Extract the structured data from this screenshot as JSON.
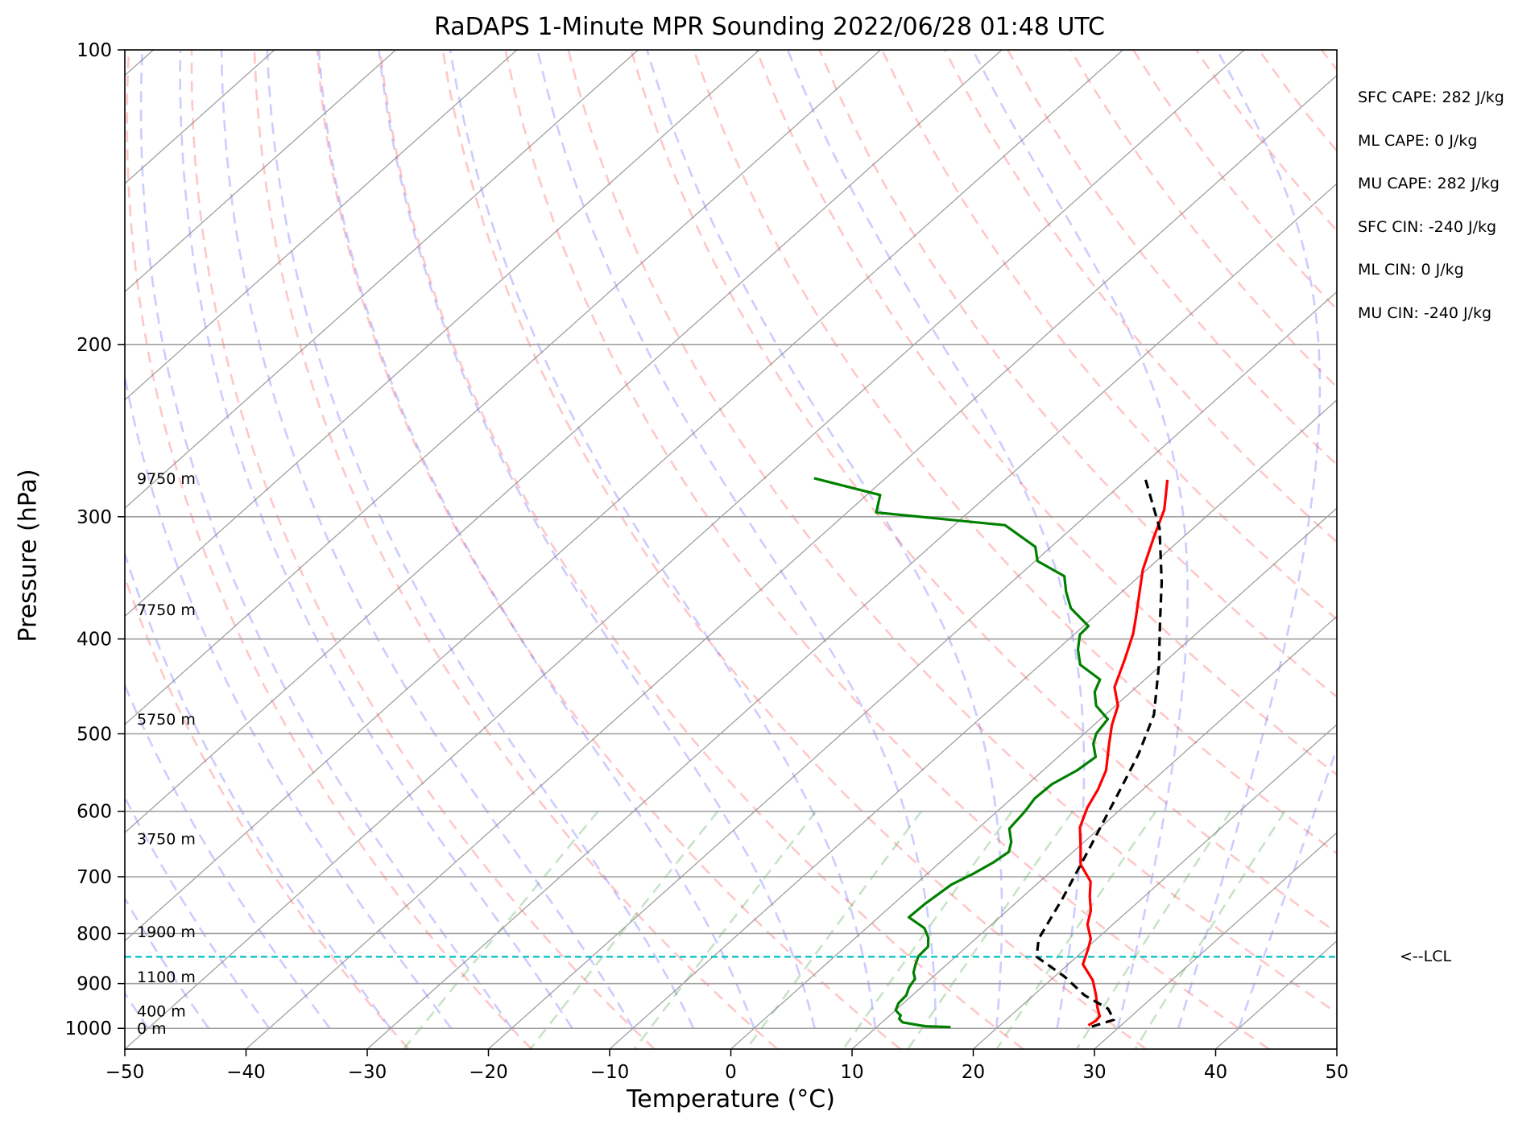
{
  "chart_data": {
    "type": "line",
    "title": "RaDAPS 1-Minute MPR Sounding 2022/06/28 01:48 UTC",
    "xlabel": "Temperature (°C)",
    "ylabel": "Pressure (hPa)",
    "xlim": [
      -50,
      50
    ],
    "ylim": [
      1050,
      100
    ],
    "y_scale": "log",
    "x_ticks": [
      "−50",
      "−40",
      "−30",
      "−20",
      "−10",
      "0",
      "10",
      "20",
      "30",
      "40",
      "50"
    ],
    "y_ticks": [
      "100",
      "200",
      "300",
      "400",
      "500",
      "600",
      "700",
      "800",
      "900",
      "1000"
    ],
    "grid": true,
    "series": [
      {
        "color": "#ff0000",
        "points": [
          [
            -16.6,
            275
          ],
          [
            -14.1,
            295
          ],
          [
            -12.4,
            315
          ],
          [
            -10.3,
            340
          ],
          [
            -6.5,
            380
          ],
          [
            -5.2,
            395
          ],
          [
            -3.5,
            420
          ],
          [
            -1.8,
            448
          ],
          [
            0.2,
            468
          ],
          [
            1.5,
            490
          ],
          [
            3.0,
            512
          ],
          [
            5.2,
            545
          ],
          [
            6.3,
            570
          ],
          [
            7.1,
            595
          ],
          [
            8.3,
            623
          ],
          [
            10.2,
            653
          ],
          [
            11.8,
            680
          ],
          [
            14.2,
            708
          ],
          [
            15.5,
            733
          ],
          [
            16.9,
            758
          ],
          [
            17.9,
            783
          ],
          [
            19.5,
            810
          ],
          [
            20.1,
            826
          ],
          [
            20.7,
            844
          ],
          [
            21.2,
            860
          ],
          [
            23.5,
            893
          ],
          [
            25.1,
            924
          ],
          [
            26.4,
            952
          ],
          [
            27.4,
            972
          ],
          [
            27.5,
            982
          ],
          [
            27.3,
            993
          ]
        ]
      },
      {
        "color": "#008000",
        "points": [
          [
            -45.9,
            274
          ],
          [
            -38.9,
            285
          ],
          [
            -37.6,
            297
          ],
          [
            -25.8,
            306
          ],
          [
            -21.3,
            322
          ],
          [
            -19.8,
            333
          ],
          [
            -16.2,
            345
          ],
          [
            -14.6,
            358
          ],
          [
            -12.7,
            372
          ],
          [
            -9.6,
            388
          ],
          [
            -9.5,
            396
          ],
          [
            -8.3,
            410
          ],
          [
            -6.7,
            425
          ],
          [
            -3.7,
            440
          ],
          [
            -3.0,
            453
          ],
          [
            -1.6,
            468
          ],
          [
            0.6,
            483
          ],
          [
            1.0,
            500
          ],
          [
            1.7,
            512
          ],
          [
            3.1,
            528
          ],
          [
            2.8,
            545
          ],
          [
            2.0,
            563
          ],
          [
            1.9,
            582
          ],
          [
            2.3,
            600
          ],
          [
            2.6,
            625
          ],
          [
            4.0,
            645
          ],
          [
            4.7,
            660
          ],
          [
            4.4,
            677
          ],
          [
            3.8,
            695
          ],
          [
            3.0,
            713
          ],
          [
            2.6,
            745
          ],
          [
            2.5,
            770
          ],
          [
            4.8,
            790
          ],
          [
            6.0,
            808
          ],
          [
            6.8,
            825
          ],
          [
            6.9,
            844
          ],
          [
            7.4,
            860
          ],
          [
            8.0,
            877
          ],
          [
            8.7,
            890
          ],
          [
            9.0,
            908
          ],
          [
            9.5,
            925
          ],
          [
            9.6,
            943
          ],
          [
            10.0,
            958
          ],
          [
            10.5,
            965
          ],
          [
            10.9,
            970
          ],
          [
            11.1,
            978
          ],
          [
            11.7,
            986
          ],
          [
            13.9,
            995
          ],
          [
            16.1,
            997
          ]
        ]
      },
      {
        "color": "#000000",
        "points": [
          [
            -18.4,
            275
          ],
          [
            -12.8,
            308
          ],
          [
            -7.6,
            350
          ],
          [
            -4.3,
            382
          ],
          [
            -0.2,
            425
          ],
          [
            4.0,
            478
          ],
          [
            6.4,
            525
          ],
          [
            8.5,
            580
          ],
          [
            11.2,
            660
          ],
          [
            13.4,
            735
          ],
          [
            15.2,
            810
          ],
          [
            16.7,
            845
          ],
          [
            20.8,
            885
          ],
          [
            24.2,
            925
          ],
          [
            27.4,
            955
          ],
          [
            28.9,
            980
          ],
          [
            27.4,
            1000
          ]
        ]
      }
    ],
    "lcl_pressure": 845,
    "height_labels": [
      {
        "text": "9750 m",
        "p": 274
      },
      {
        "text": "7750 m",
        "p": 373
      },
      {
        "text": "5750 m",
        "p": 483
      },
      {
        "text": "3750 m",
        "p": 640
      },
      {
        "text": "1900 m",
        "p": 796
      },
      {
        "text": "1100 m",
        "p": 885
      },
      {
        "text": "400 m",
        "p": 960
      },
      {
        "text": "0 m",
        "p": 1000
      }
    ],
    "annotations": [
      "SFC CAPE: 282 J/kg",
      "ML CAPE: 0 J/kg",
      "MU CAPE: 282 J/kg",
      "SFC CIN: -240 J/kg",
      "ML CIN: 0 J/kg",
      "MU CIN: -240 J/kg"
    ],
    "lcl_label": "<--LCL"
  }
}
